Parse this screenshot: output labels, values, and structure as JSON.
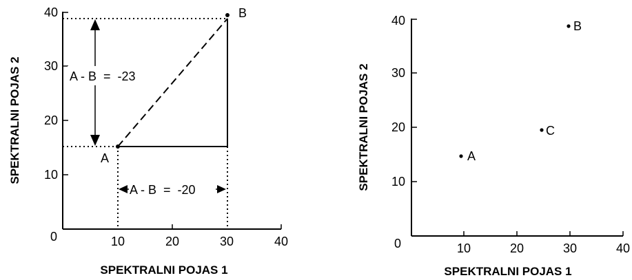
{
  "chart_data": [
    {
      "type": "scatter",
      "xlabel": "SPEKTRALNI POJAS 1",
      "ylabel": "SPEKTRALNI POJAS 2",
      "xlim": [
        0,
        40
      ],
      "ylim": [
        0,
        40
      ],
      "x_ticks": [
        "0",
        "10",
        "20",
        "30",
        "40"
      ],
      "y_ticks": [
        "10",
        "20",
        "30",
        "40"
      ],
      "points": [
        {
          "label": "A",
          "x": 10,
          "y": 15
        },
        {
          "label": "B",
          "x": 30,
          "y": 39
        }
      ],
      "annotations": [
        {
          "text": "A - B  =  -23"
        },
        {
          "text": "A - B  =  -20"
        }
      ]
    },
    {
      "type": "scatter",
      "xlabel": "SPEKTRALNI POJAS 1",
      "ylabel": "SPEKTRALNI POJAS 2",
      "xlim": [
        0,
        40
      ],
      "ylim": [
        0,
        40
      ],
      "x_ticks": [
        "0",
        "10",
        "20",
        "30",
        "40"
      ],
      "y_ticks": [
        "10",
        "20",
        "30",
        "40"
      ],
      "points": [
        {
          "label": "A",
          "x": 11,
          "y": 15
        },
        {
          "label": "B",
          "x": 30,
          "y": 39
        },
        {
          "label": "C",
          "x": 25,
          "y": 20
        }
      ]
    }
  ]
}
